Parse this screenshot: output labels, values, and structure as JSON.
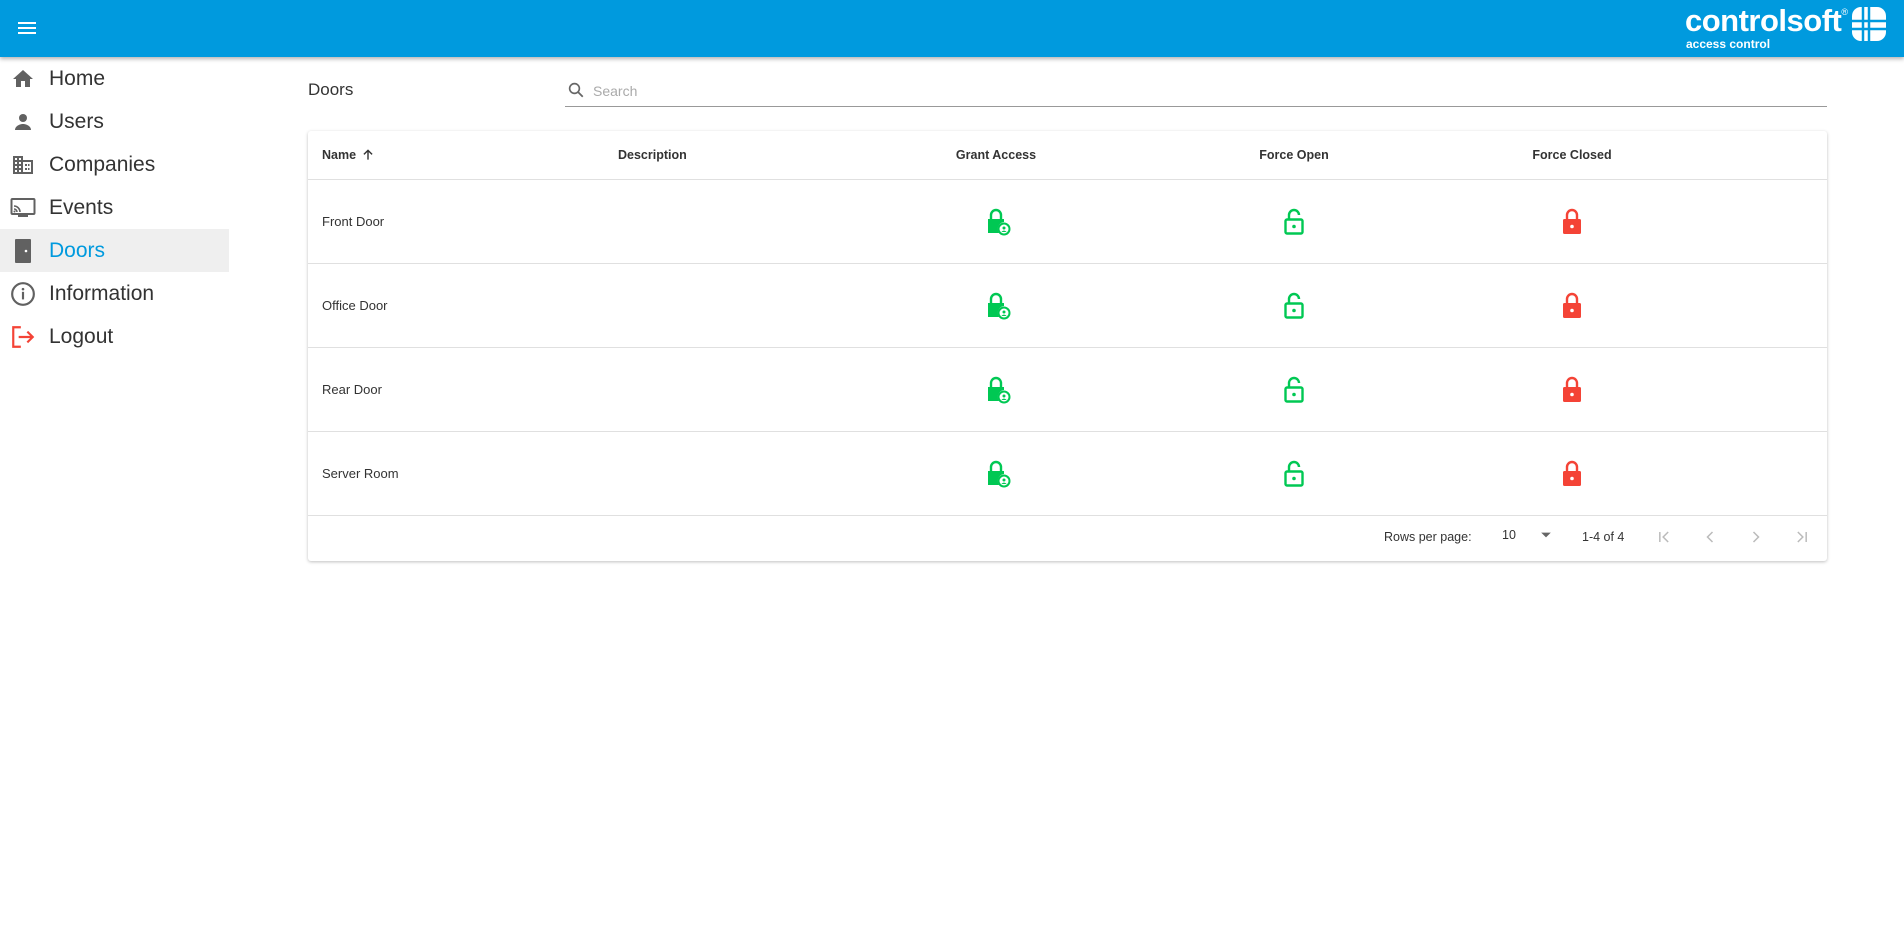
{
  "header": {
    "logo_text": "controlsoft",
    "logo_sub": "access control",
    "brand_color": "#009ade"
  },
  "sidebar": {
    "items": [
      {
        "label": "Home",
        "icon": "home-icon"
      },
      {
        "label": "Users",
        "icon": "person-icon"
      },
      {
        "label": "Companies",
        "icon": "business-icon"
      },
      {
        "label": "Events",
        "icon": "cast-icon"
      },
      {
        "label": "Doors",
        "icon": "door-icon",
        "active": true
      },
      {
        "label": "Information",
        "icon": "info-icon"
      },
      {
        "label": "Logout",
        "icon": "logout-icon"
      }
    ]
  },
  "page": {
    "title": "Doors",
    "search_placeholder": "Search"
  },
  "table": {
    "columns": [
      "Name",
      "Description",
      "Grant Access",
      "Force Open",
      "Force Closed"
    ],
    "sort": {
      "column": "Name",
      "direction": "ascending"
    },
    "rows": [
      {
        "name": "Front Door",
        "description": ""
      },
      {
        "name": "Office Door",
        "description": ""
      },
      {
        "name": "Rear Door",
        "description": ""
      },
      {
        "name": "Server Room",
        "description": ""
      }
    ],
    "colors": {
      "grant": "#00c853",
      "open": "#00c853",
      "closed": "#f44336"
    }
  },
  "pagination": {
    "rows_per_page_label": "Rows per page:",
    "rows_per_page": "10",
    "range": "1-4 of 4"
  }
}
